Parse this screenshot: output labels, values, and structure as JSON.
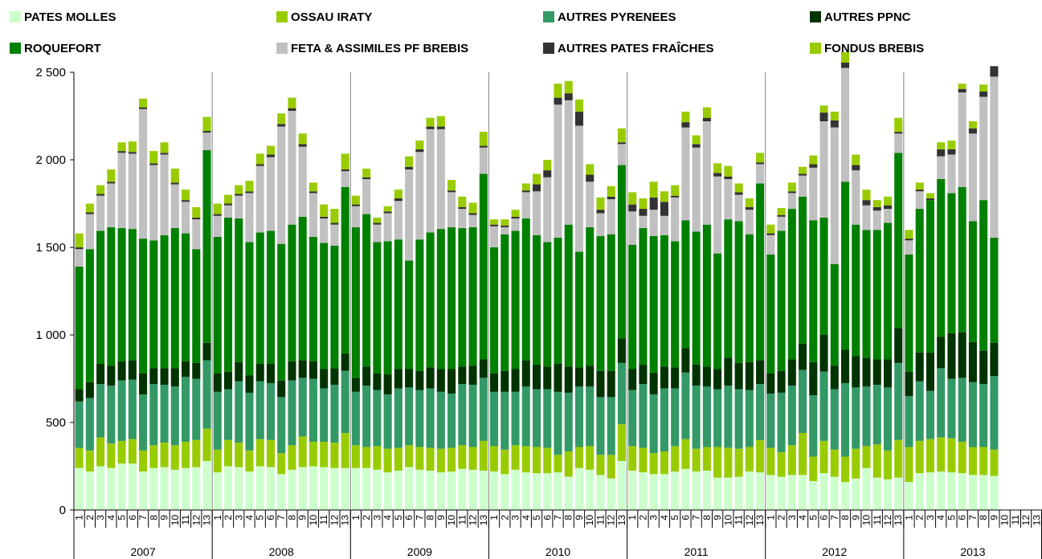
{
  "chart_data": {
    "type": "bar",
    "stacked": true,
    "title": "",
    "xlabel": "",
    "ylabel": "",
    "ylim": [
      0,
      2500
    ],
    "yticks": [
      0,
      500,
      1000,
      1500,
      2000,
      2500
    ],
    "ytick_labels": [
      "0",
      "500",
      "1 000",
      "1 500",
      "2 000",
      "2 500"
    ],
    "grid": "horizontal-none",
    "legend_placement": "top",
    "years": [
      {
        "label": "2007",
        "periods": 13
      },
      {
        "label": "2008",
        "periods": 13
      },
      {
        "label": "2009",
        "periods": 13
      },
      {
        "label": "2010",
        "periods": 13
      },
      {
        "label": "2011",
        "periods": 13
      },
      {
        "label": "2012",
        "periods": 13
      },
      {
        "label": "2013",
        "periods": 13
      }
    ],
    "series": [
      {
        "name": "PATES MOLLES",
        "color": "#ccffcc",
        "values": [
          240,
          220,
          250,
          240,
          265,
          265,
          220,
          240,
          245,
          230,
          240,
          245,
          280,
          215,
          250,
          245,
          220,
          250,
          245,
          205,
          230,
          245,
          250,
          245,
          240,
          240,
          240,
          240,
          230,
          215,
          225,
          245,
          230,
          225,
          215,
          220,
          235,
          230,
          225,
          220,
          205,
          230,
          215,
          210,
          210,
          215,
          190,
          240,
          230,
          200,
          180,
          280,
          225,
          215,
          205,
          205,
          220,
          235,
          220,
          225,
          185,
          185,
          190,
          220,
          215,
          200,
          190,
          200,
          200,
          165,
          210,
          190,
          160,
          180,
          240,
          185,
          175,
          185,
          160,
          210,
          215,
          220,
          215,
          210,
          200,
          200,
          195,
          0,
          0,
          0,
          0
        ]
      },
      {
        "name": "OSSAU IRATY",
        "color": "#99cc00",
        "values": [
          115,
          120,
          165,
          140,
          130,
          140,
          120,
          130,
          140,
          140,
          150,
          155,
          185,
          130,
          150,
          140,
          120,
          155,
          155,
          120,
          140,
          175,
          140,
          145,
          145,
          200,
          130,
          120,
          135,
          135,
          130,
          125,
          130,
          130,
          135,
          135,
          135,
          130,
          170,
          145,
          140,
          140,
          150,
          150,
          145,
          100,
          145,
          120,
          135,
          115,
          135,
          210,
          140,
          140,
          120,
          130,
          145,
          170,
          130,
          135,
          175,
          170,
          160,
          140,
          185,
          155,
          140,
          170,
          240,
          140,
          185,
          155,
          145,
          170,
          125,
          190,
          165,
          215,
          200,
          185,
          190,
          195,
          195,
          180,
          160,
          160,
          150,
          0,
          0,
          0,
          0
        ]
      },
      {
        "name": "AUTRES PYRENEES",
        "color": "#339966",
        "values": [
          265,
          300,
          305,
          330,
          345,
          340,
          320,
          350,
          330,
          335,
          370,
          350,
          390,
          330,
          290,
          350,
          330,
          330,
          325,
          320,
          370,
          335,
          360,
          305,
          330,
          355,
          305,
          350,
          320,
          310,
          340,
          330,
          325,
          340,
          325,
          310,
          350,
          355,
          360,
          310,
          330,
          305,
          340,
          330,
          335,
          360,
          335,
          345,
          340,
          330,
          330,
          350,
          320,
          365,
          335,
          360,
          330,
          380,
          360,
          345,
          330,
          355,
          340,
          325,
          320,
          310,
          340,
          340,
          360,
          350,
          395,
          345,
          420,
          350,
          340,
          340,
          360,
          440,
          290,
          340,
          275,
          395,
          340,
          365,
          370,
          360,
          420,
          0,
          0,
          0,
          0
        ]
      },
      {
        "name": "AUTRES PPNC",
        "color": "#003300",
        "values": [
          70,
          90,
          115,
          115,
          110,
          110,
          120,
          90,
          95,
          105,
          90,
          90,
          100,
          105,
          100,
          110,
          100,
          100,
          110,
          95,
          110,
          100,
          100,
          110,
          95,
          100,
          80,
          110,
          95,
          115,
          110,
          105,
          110,
          120,
          130,
          140,
          100,
          110,
          105,
          105,
          120,
          130,
          150,
          140,
          130,
          160,
          150,
          110,
          120,
          150,
          150,
          140,
          120,
          110,
          125,
          125,
          120,
          140,
          120,
          115,
          115,
          160,
          150,
          160,
          135,
          115,
          125,
          150,
          150,
          190,
          210,
          135,
          190,
          180,
          165,
          145,
          160,
          200,
          140,
          165,
          220,
          180,
          260,
          260,
          230,
          190,
          190,
          0,
          0,
          0,
          0
        ]
      },
      {
        "name": "ROQUEFORT",
        "color": "#008000",
        "values": [
          700,
          760,
          760,
          790,
          760,
          750,
          770,
          730,
          760,
          800,
          730,
          650,
          1100,
          780,
          880,
          820,
          760,
          750,
          760,
          780,
          780,
          820,
          710,
          720,
          700,
          950,
          860,
          870,
          750,
          760,
          740,
          620,
          750,
          770,
          800,
          810,
          790,
          790,
          1060,
          720,
          780,
          790,
          810,
          740,
          710,
          720,
          810,
          660,
          790,
          770,
          780,
          990,
          710,
          780,
          780,
          750,
          720,
          730,
          760,
          810,
          660,
          790,
          810,
          730,
          1010,
          680,
          800,
          860,
          840,
          810,
          670,
          580,
          960,
          750,
          730,
          740,
          780,
          1000,
          670,
          820,
          870,
          900,
          800,
          830,
          690,
          860,
          600,
          0,
          0,
          0,
          0
        ]
      },
      {
        "name": "FETA & ASSIMILES PF BREBIS",
        "color": "#c0c0c0",
        "values": [
          100,
          200,
          200,
          250,
          430,
          430,
          740,
          430,
          460,
          250,
          180,
          170,
          100,
          120,
          70,
          130,
          280,
          380,
          420,
          670,
          650,
          400,
          250,
          140,
          120,
          90,
          120,
          200,
          100,
          160,
          220,
          520,
          500,
          590,
          570,
          200,
          110,
          70,
          150,
          120,
          40,
          70,
          150,
          250,
          370,
          760,
          710,
          720,
          260,
          130,
          200,
          120,
          190,
          70,
          150,
          110,
          250,
          530,
          480,
          590,
          440,
          230,
          150,
          140,
          110,
          110,
          80,
          90,
          120,
          300,
          550,
          780,
          650,
          310,
          140,
          110,
          80,
          110,
          80,
          100,
          0,
          130,
          220,
          540,
          500,
          590,
          920,
          0,
          0,
          0,
          0
        ]
      },
      {
        "name": "AUTRES PATES FRAÎCHES",
        "color": "#333333",
        "values": [
          10,
          10,
          10,
          10,
          10,
          10,
          10,
          10,
          10,
          10,
          10,
          10,
          10,
          10,
          10,
          10,
          10,
          10,
          15,
          15,
          15,
          15,
          10,
          10,
          10,
          10,
          10,
          10,
          10,
          10,
          15,
          15,
          15,
          15,
          15,
          10,
          10,
          10,
          10,
          10,
          10,
          10,
          10,
          40,
          40,
          40,
          40,
          80,
          40,
          20,
          15,
          10,
          40,
          40,
          70,
          80,
          10,
          30,
          20,
          20,
          20,
          15,
          15,
          15,
          10,
          10,
          10,
          10,
          10,
          20,
          50,
          40,
          30,
          30,
          30,
          20,
          20,
          10,
          10,
          10,
          10,
          40,
          30,
          20,
          30,
          30,
          60,
          0,
          0,
          0,
          0
        ]
      },
      {
        "name": "FONDUS BREBIS",
        "color": "#99cc00",
        "values": [
          80,
          50,
          50,
          70,
          50,
          60,
          50,
          70,
          60,
          80,
          60,
          60,
          80,
          60,
          50,
          50,
          60,
          60,
          50,
          60,
          60,
          60,
          50,
          70,
          80,
          90,
          50,
          50,
          30,
          30,
          50,
          60,
          50,
          50,
          60,
          60,
          60,
          60,
          80,
          30,
          35,
          40,
          40,
          60,
          60,
          80,
          70,
          70,
          60,
          70,
          60,
          80,
          70,
          60,
          90,
          60,
          60,
          60,
          50,
          60,
          55,
          60,
          50,
          50,
          55,
          50,
          40,
          50,
          40,
          50,
          40,
          50,
          60,
          60,
          60,
          40,
          50,
          80,
          50,
          40,
          30,
          40,
          50,
          30,
          40,
          40,
          0,
          0,
          0,
          0,
          0
        ]
      }
    ]
  }
}
